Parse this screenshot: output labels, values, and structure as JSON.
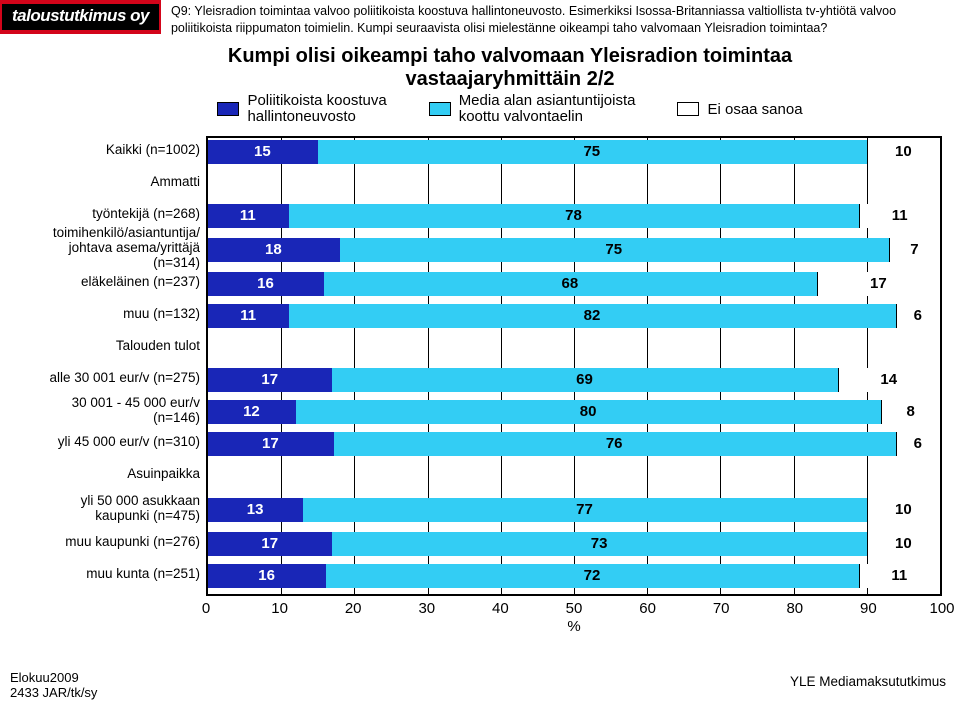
{
  "logo": "taloustutkimus oy",
  "question": "Q9: Yleisradion toimintaa valvoo poliitikoista koostuva hallintoneuvosto. Esimerkiksi Isossa-Britanniassa valtiollista tv-yhtiötä valvoo poliitikoista riippumaton toimielin. Kumpi seuraavista olisi mielestänne oikeampi taho valvomaan Yleisradion toimintaa?",
  "title_line1": "Kumpi olisi oikeampi taho valvomaan Yleisradion toimintaa",
  "title_line2": "vastaajaryhmittäin 2/2",
  "legend": {
    "a": "Poliitikoista koostuva\nhallintoneuvosto",
    "b": "Media alan asiantuntijoista\nkoottu valvontaelin",
    "c": "Ei osaa sanoa"
  },
  "colors": {
    "a": "#1926b7",
    "b": "#33cdf4",
    "c": "#ffffff",
    "logo_bg": "#d3041a",
    "logo_inner_bg": "#000000",
    "border": "#000000"
  },
  "rows": [
    {
      "type": "bar",
      "label": "Kaikki (n=1002)",
      "a": 15,
      "b": 75,
      "c": 10
    },
    {
      "type": "section",
      "label": "Ammatti"
    },
    {
      "type": "bar",
      "label": "työntekijä (n=268)",
      "a": 11,
      "b": 78,
      "c": 11
    },
    {
      "type": "bar",
      "two": true,
      "label": "toimihenkilö/asiantuntija/\njohtava asema/yrittäjä (n=314)",
      "a": 18,
      "b": 75,
      "c": 7
    },
    {
      "type": "bar",
      "label": "eläkeläinen (n=237)",
      "a": 16,
      "b": 68,
      "c": 17
    },
    {
      "type": "bar",
      "label": "muu (n=132)",
      "a": 11,
      "b": 82,
      "c": 6
    },
    {
      "type": "section",
      "label": "Talouden tulot"
    },
    {
      "type": "bar",
      "label": "alle 30 001 eur/v (n=275)",
      "a": 17,
      "b": 69,
      "c": 14
    },
    {
      "type": "bar",
      "label": "30 001 - 45 000 eur/v (n=146)",
      "a": 12,
      "b": 80,
      "c": 8
    },
    {
      "type": "bar",
      "label": "yli 45 000 eur/v (n=310)",
      "a": 17,
      "b": 76,
      "c": 6
    },
    {
      "type": "section",
      "label": "Asuinpaikka"
    },
    {
      "type": "bar",
      "two": true,
      "label": "yli 50 000 asukkaan\nkaupunki (n=475)",
      "a": 13,
      "b": 77,
      "c": 10
    },
    {
      "type": "bar",
      "label": "muu kaupunki (n=276)",
      "a": 17,
      "b": 73,
      "c": 10
    },
    {
      "type": "bar",
      "label": "muu  kunta (n=251)",
      "a": 16,
      "b": 72,
      "c": 11
    }
  ],
  "xaxis": {
    "ticks": [
      0,
      10,
      20,
      30,
      40,
      50,
      60,
      70,
      80,
      90,
      100
    ],
    "label": "%"
  },
  "footer_left_line1": "Elokuu2009",
  "footer_left_line2": "2433 JAR/tk/sy",
  "footer_right": "YLE Mediamaksututkimus"
}
